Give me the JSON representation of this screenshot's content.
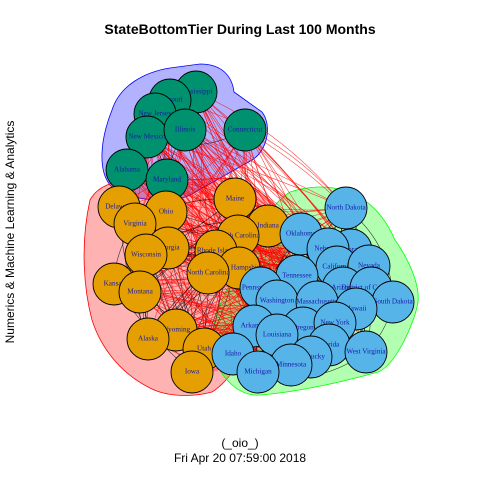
{
  "title": "StateBottomTier During Last 100 Months",
  "ylabel": "Numerics & Machine Learning & Analytics",
  "subtitle_line1": "(_oio_)",
  "subtitle_line2": "Fri Apr 20 07:59:00 2018",
  "colors": {
    "group_teal": "#00916E",
    "group_orange": "#E69F00",
    "group_blue": "#56B4E9",
    "hull_blue": "#0000FF",
    "hull_red": "#FF0000",
    "hull_green": "#00FF00",
    "edge_cross": "#FF0000",
    "edge_within": "#000000",
    "label": "#1A1AA6"
  },
  "groups": [
    {
      "name": "teal",
      "color": "#00916E",
      "nodes": [
        "Mississippi",
        "Missouri",
        "New Jersey",
        "New Mexico",
        "Illinois",
        "Connecticut",
        "Alabama",
        "Maryland"
      ]
    },
    {
      "name": "orange",
      "color": "#E69F00",
      "nodes": [
        "Maine",
        "Delaware",
        "Ohio",
        "Virginia",
        "Indiana",
        "South Carolina",
        "Georgia",
        "Rhode Island",
        "Wisconsin",
        "New Hampshire",
        "North Carolina",
        "Kansas",
        "Montana",
        "Wyoming",
        "Alaska",
        "Utah",
        "Iowa"
      ]
    },
    {
      "name": "blue",
      "color": "#56B4E9",
      "nodes": [
        "North Dakota",
        "Oklahoma",
        "Colorado",
        "Nebraska",
        "California",
        "Nevada",
        "Arizona",
        "Tennessee",
        "Pennsylvania",
        "District of Columbia",
        "South Dakota",
        "Washington",
        "Massachusetts",
        "Hawaii",
        "Arkansas",
        "Oregon",
        "New York",
        "Idaho",
        "Louisiana",
        "Florida",
        "Kentucky",
        "West Virginia",
        "Minnesota",
        "Michigan"
      ]
    }
  ]
}
